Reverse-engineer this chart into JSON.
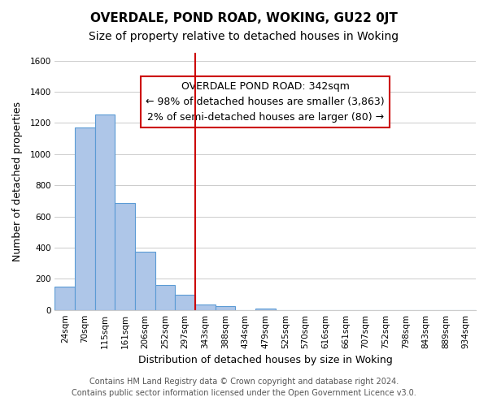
{
  "title": "OVERDALE, POND ROAD, WOKING, GU22 0JT",
  "subtitle": "Size of property relative to detached houses in Woking",
  "xlabel": "Distribution of detached houses by size in Woking",
  "ylabel": "Number of detached properties",
  "footer_lines": [
    "Contains HM Land Registry data © Crown copyright and database right 2024.",
    "Contains public sector information licensed under the Open Government Licence v3.0."
  ],
  "bin_labels": [
    "24sqm",
    "70sqm",
    "115sqm",
    "161sqm",
    "206sqm",
    "252sqm",
    "297sqm",
    "343sqm",
    "388sqm",
    "434sqm",
    "479sqm",
    "525sqm",
    "570sqm",
    "616sqm",
    "661sqm",
    "707sqm",
    "752sqm",
    "798sqm",
    "843sqm",
    "889sqm",
    "934sqm"
  ],
  "bar_values": [
    148,
    1170,
    1255,
    685,
    375,
    160,
    95,
    35,
    22,
    0,
    8,
    0,
    0,
    0,
    0,
    0,
    0,
    0,
    0,
    0,
    0
  ],
  "bar_color": "#aec6e8",
  "bar_edge_color": "#5b9bd5",
  "vline_x_index": 7,
  "vline_color": "#cc0000",
  "annotation_box": {
    "text_lines": [
      "OVERDALE POND ROAD: 342sqm",
      "← 98% of detached houses are smaller (3,863)",
      "2% of semi-detached houses are larger (80) →"
    ],
    "box_color": "#ffffff",
    "border_color": "#cc0000",
    "fontsize": 9
  },
  "ylim": [
    0,
    1650
  ],
  "yticks": [
    0,
    200,
    400,
    600,
    800,
    1000,
    1200,
    1400,
    1600
  ],
  "grid_color": "#cccccc",
  "background_color": "#ffffff",
  "title_fontsize": 11,
  "subtitle_fontsize": 10,
  "xlabel_fontsize": 9,
  "ylabel_fontsize": 9,
  "tick_fontsize": 7.5,
  "footer_fontsize": 7
}
